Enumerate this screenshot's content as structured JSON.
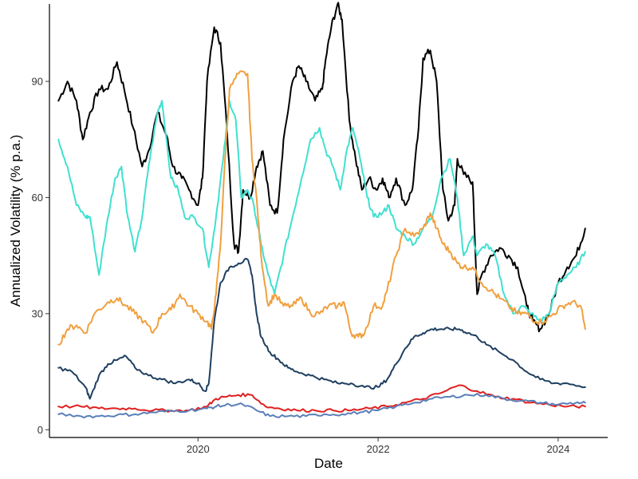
{
  "chart_data": {
    "type": "line",
    "xlabel": "Date",
    "ylabel": "Annualized Volatility (% p.a.)",
    "grid": false,
    "legend": "none",
    "xlim": [
      2018.35,
      2024.55
    ],
    "ylim": [
      -2,
      110
    ],
    "x_ticks": [
      {
        "value": 2020,
        "label": "2020"
      },
      {
        "value": 2022,
        "label": "2022"
      },
      {
        "value": 2024,
        "label": "2024"
      }
    ],
    "y_ticks": [
      {
        "value": 0,
        "label": "0"
      },
      {
        "value": 30,
        "label": "30"
      },
      {
        "value": 60,
        "label": "60"
      },
      {
        "value": 90,
        "label": "90"
      }
    ],
    "series": [
      {
        "color": "#000000",
        "x": [
          2018.45,
          2018.55,
          2018.65,
          2018.72,
          2018.8,
          2018.9,
          2019.0,
          2019.1,
          2019.18,
          2019.28,
          2019.38,
          2019.45,
          2019.55,
          2019.65,
          2019.72,
          2019.82,
          2019.9,
          2020.0,
          2020.05,
          2020.1,
          2020.18,
          2020.25,
          2020.32,
          2020.4,
          2020.45,
          2020.5,
          2020.58,
          2020.65,
          2020.72,
          2020.8,
          2020.88,
          2020.95,
          2021.05,
          2021.12,
          2021.2,
          2021.3,
          2021.38,
          2021.42,
          2021.48,
          2021.55,
          2021.6,
          2021.68,
          2021.75,
          2021.82,
          2021.9,
          2021.98,
          2022.05,
          2022.12,
          2022.2,
          2022.3,
          2022.38,
          2022.45,
          2022.5,
          2022.58,
          2022.65,
          2022.72,
          2022.78,
          2022.85,
          2022.88,
          2022.95,
          2023.05,
          2023.1,
          2023.15,
          2023.25,
          2023.35,
          2023.45,
          2023.55,
          2023.65,
          2023.72,
          2023.8,
          2023.9,
          2024.0,
          2024.1,
          2024.2,
          2024.3
        ],
        "y": [
          85,
          90,
          85,
          75,
          82,
          88,
          88,
          95,
          88,
          78,
          68,
          72,
          82,
          76,
          68,
          65,
          62,
          58,
          65,
          90,
          104,
          100,
          78,
          48,
          46,
          62,
          60,
          68,
          72,
          58,
          56,
          75,
          90,
          94,
          90,
          85,
          88,
          96,
          104,
          110,
          106,
          80,
          70,
          62,
          65,
          62,
          65,
          60,
          65,
          58,
          62,
          78,
          96,
          98,
          90,
          62,
          54,
          58,
          70,
          66,
          64,
          35,
          40,
          45,
          47,
          45,
          42,
          32,
          28,
          26,
          30,
          38,
          42,
          45,
          52
        ]
      },
      {
        "color": "#40e0d0",
        "x": [
          2018.45,
          2018.55,
          2018.65,
          2018.75,
          2018.8,
          2018.9,
          2019.0,
          2019.08,
          2019.15,
          2019.22,
          2019.3,
          2019.38,
          2019.45,
          2019.55,
          2019.6,
          2019.7,
          2019.78,
          2019.85,
          2019.95,
          2020.05,
          2020.12,
          2020.2,
          2020.28,
          2020.35,
          2020.42,
          2020.48,
          2020.55,
          2020.62,
          2020.7,
          2020.78,
          2020.85,
          2020.95,
          2021.05,
          2021.15,
          2021.25,
          2021.35,
          2021.42,
          2021.5,
          2021.58,
          2021.65,
          2021.72,
          2021.8,
          2021.88,
          2021.95,
          2022.05,
          2022.12,
          2022.2,
          2022.3,
          2022.4,
          2022.5,
          2022.6,
          2022.7,
          2022.8,
          2022.88,
          2022.95,
          2023.05,
          2023.1,
          2023.2,
          2023.3,
          2023.4,
          2023.5,
          2023.6,
          2023.7,
          2023.8,
          2023.9,
          2024.0,
          2024.1,
          2024.2,
          2024.3
        ],
        "y": [
          75,
          68,
          58,
          55,
          55,
          40,
          55,
          65,
          68,
          55,
          46,
          55,
          68,
          82,
          85,
          65,
          62,
          55,
          55,
          52,
          42,
          55,
          70,
          85,
          80,
          60,
          62,
          58,
          48,
          40,
          35,
          45,
          55,
          65,
          75,
          78,
          72,
          68,
          62,
          72,
          78,
          70,
          60,
          55,
          56,
          58,
          52,
          50,
          48,
          52,
          55,
          65,
          70,
          60,
          45,
          50,
          45,
          48,
          45,
          35,
          30,
          32,
          30,
          28,
          30,
          38,
          40,
          42,
          46
        ]
      },
      {
        "color": "#f0a040",
        "x": [
          2018.45,
          2018.55,
          2018.65,
          2018.75,
          2018.85,
          2019.0,
          2019.1,
          2019.2,
          2019.3,
          2019.4,
          2019.5,
          2019.6,
          2019.7,
          2019.8,
          2019.9,
          2020.0,
          2020.1,
          2020.15,
          2020.2,
          2020.25,
          2020.3,
          2020.35,
          2020.45,
          2020.55,
          2020.6,
          2020.65,
          2020.7,
          2020.78,
          2020.85,
          2020.95,
          2021.05,
          2021.15,
          2021.25,
          2021.35,
          2021.45,
          2021.55,
          2021.62,
          2021.7,
          2021.78,
          2021.85,
          2021.95,
          2022.05,
          2022.1,
          2022.2,
          2022.3,
          2022.4,
          2022.5,
          2022.58,
          2022.65,
          2022.72,
          2022.8,
          2022.88,
          2022.95,
          2023.05,
          2023.15,
          2023.25,
          2023.35,
          2023.45,
          2023.55,
          2023.65,
          2023.75,
          2023.85,
          2023.95,
          2024.05,
          2024.15,
          2024.25,
          2024.3
        ],
        "y": [
          22,
          26,
          27,
          25,
          30,
          33,
          34,
          32,
          30,
          28,
          25,
          30,
          31,
          35,
          32,
          30,
          28,
          26,
          35,
          48,
          70,
          88,
          92,
          92,
          70,
          60,
          45,
          32,
          35,
          32,
          32,
          34,
          30,
          30,
          32,
          32,
          33,
          25,
          24,
          25,
          32,
          32,
          36,
          45,
          52,
          50,
          52,
          56,
          52,
          48,
          46,
          43,
          42,
          42,
          38,
          36,
          34,
          32,
          30,
          30,
          28,
          28,
          30,
          32,
          33,
          32,
          26
        ]
      },
      {
        "color": "#1f3f60",
        "x": [
          2018.45,
          2018.6,
          2018.75,
          2018.8,
          2018.9,
          2019.0,
          2019.1,
          2019.2,
          2019.3,
          2019.45,
          2019.6,
          2019.75,
          2019.9,
          2020.0,
          2020.08,
          2020.12,
          2020.18,
          2020.25,
          2020.35,
          2020.45,
          2020.55,
          2020.6,
          2020.65,
          2020.7,
          2020.8,
          2020.9,
          2021.0,
          2021.1,
          2021.25,
          2021.4,
          2021.55,
          2021.7,
          2021.85,
          2022.0,
          2022.1,
          2022.2,
          2022.3,
          2022.4,
          2022.5,
          2022.6,
          2022.7,
          2022.8,
          2022.9,
          2023.0,
          2023.1,
          2023.2,
          2023.35,
          2023.5,
          2023.65,
          2023.8,
          2023.95,
          2024.1,
          2024.3
        ],
        "y": [
          16,
          15,
          11,
          8,
          14,
          17,
          18,
          19,
          16,
          14,
          13,
          12,
          13,
          12,
          10,
          12,
          28,
          38,
          42,
          43,
          44,
          40,
          30,
          24,
          20,
          18,
          16,
          15,
          14,
          13,
          12,
          12,
          11,
          11,
          13,
          17,
          21,
          24,
          25,
          26,
          26,
          26,
          26,
          25,
          24,
          22,
          20,
          18,
          15,
          13,
          12,
          12,
          11
        ]
      },
      {
        "color": "#e02020",
        "x": [
          2018.45,
          2018.7,
          2018.9,
          2019.1,
          2019.3,
          2019.5,
          2019.7,
          2019.9,
          2020.1,
          2020.2,
          2020.3,
          2020.45,
          2020.6,
          2020.75,
          2020.9,
          2021.1,
          2021.3,
          2021.5,
          2021.7,
          2021.9,
          2022.1,
          2022.3,
          2022.5,
          2022.7,
          2022.9,
          2023.1,
          2023.3,
          2023.5,
          2023.7,
          2023.9,
          2024.1,
          2024.3
        ],
        "y": [
          6,
          6,
          5.5,
          5.5,
          5.5,
          5,
          5,
          5,
          6,
          8,
          8.5,
          9,
          9,
          6,
          5.5,
          5,
          5,
          5,
          5,
          5.5,
          6,
          7,
          8,
          9.5,
          11.5,
          10,
          8.5,
          8,
          7,
          6.5,
          6,
          6
        ]
      },
      {
        "color": "#5a7fb8",
        "x": [
          2018.45,
          2018.7,
          2018.9,
          2019.1,
          2019.3,
          2019.5,
          2019.7,
          2019.9,
          2020.1,
          2020.2,
          2020.35,
          2020.5,
          2020.65,
          2020.8,
          2021.0,
          2021.2,
          2021.4,
          2021.6,
          2021.8,
          2022.0,
          2022.2,
          2022.4,
          2022.6,
          2022.8,
          2023.0,
          2023.2,
          2023.4,
          2023.6,
          2023.8,
          2024.0,
          2024.2,
          2024.3
        ],
        "y": [
          4,
          3.5,
          3.5,
          3.8,
          4,
          4.5,
          4.8,
          5,
          5.5,
          6,
          6.5,
          6.5,
          5,
          3.5,
          3.5,
          3.5,
          4,
          4,
          4.5,
          5,
          6,
          7,
          8,
          8.5,
          9,
          9,
          8,
          7.5,
          7,
          6.5,
          7,
          7
        ]
      }
    ]
  }
}
